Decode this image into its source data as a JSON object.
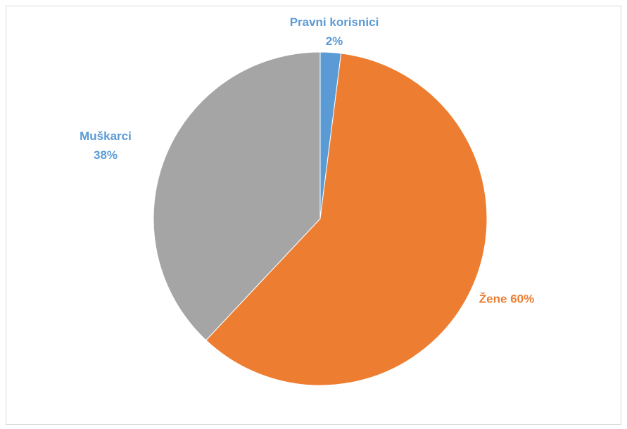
{
  "chart_data": {
    "type": "pie",
    "categories": [
      "Pravni korisnici",
      "Žene",
      "Muškarci"
    ],
    "values": [
      2,
      60,
      38
    ],
    "value_labels": [
      "2%",
      "60%",
      "38%"
    ],
    "colors": [
      "#5b9bd5",
      "#ed7d31",
      "#a5a5a5"
    ],
    "label_colors": [
      "#5b9bd5",
      "#ed7d31",
      "#5b9bd5"
    ]
  }
}
